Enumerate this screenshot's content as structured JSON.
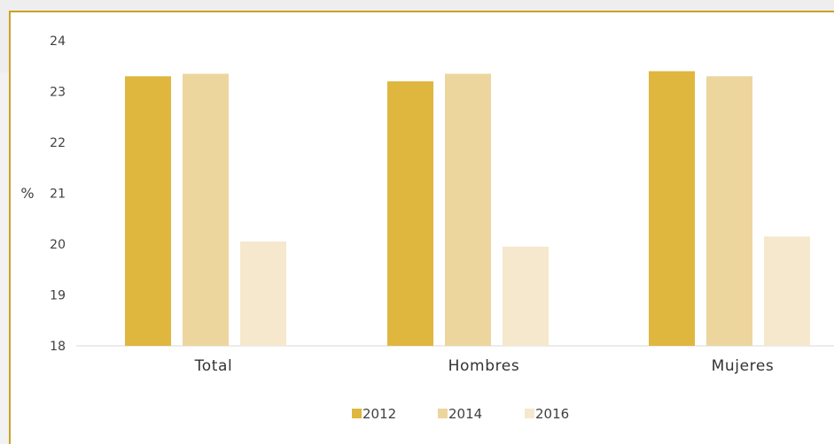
{
  "chart_data": {
    "type": "bar",
    "title": "",
    "xlabel": "",
    "ylabel": "%",
    "ylim": [
      18,
      24
    ],
    "yticks": [
      "18",
      "19",
      "20",
      "21",
      "22",
      "23",
      "24"
    ],
    "categories": [
      "Total",
      "Hombres",
      "Mujeres"
    ],
    "series": [
      {
        "name": "2012",
        "color": "#dfb63e",
        "values": [
          23.3,
          23.2,
          23.4
        ]
      },
      {
        "name": "2014",
        "color": "#ecd69e",
        "values": [
          23.35,
          23.35,
          23.3
        ]
      },
      {
        "name": "2016",
        "color": "#f5e8cd",
        "values": [
          20.05,
          19.95,
          20.15
        ]
      }
    ],
    "grid": false,
    "legend_position": "bottom"
  }
}
